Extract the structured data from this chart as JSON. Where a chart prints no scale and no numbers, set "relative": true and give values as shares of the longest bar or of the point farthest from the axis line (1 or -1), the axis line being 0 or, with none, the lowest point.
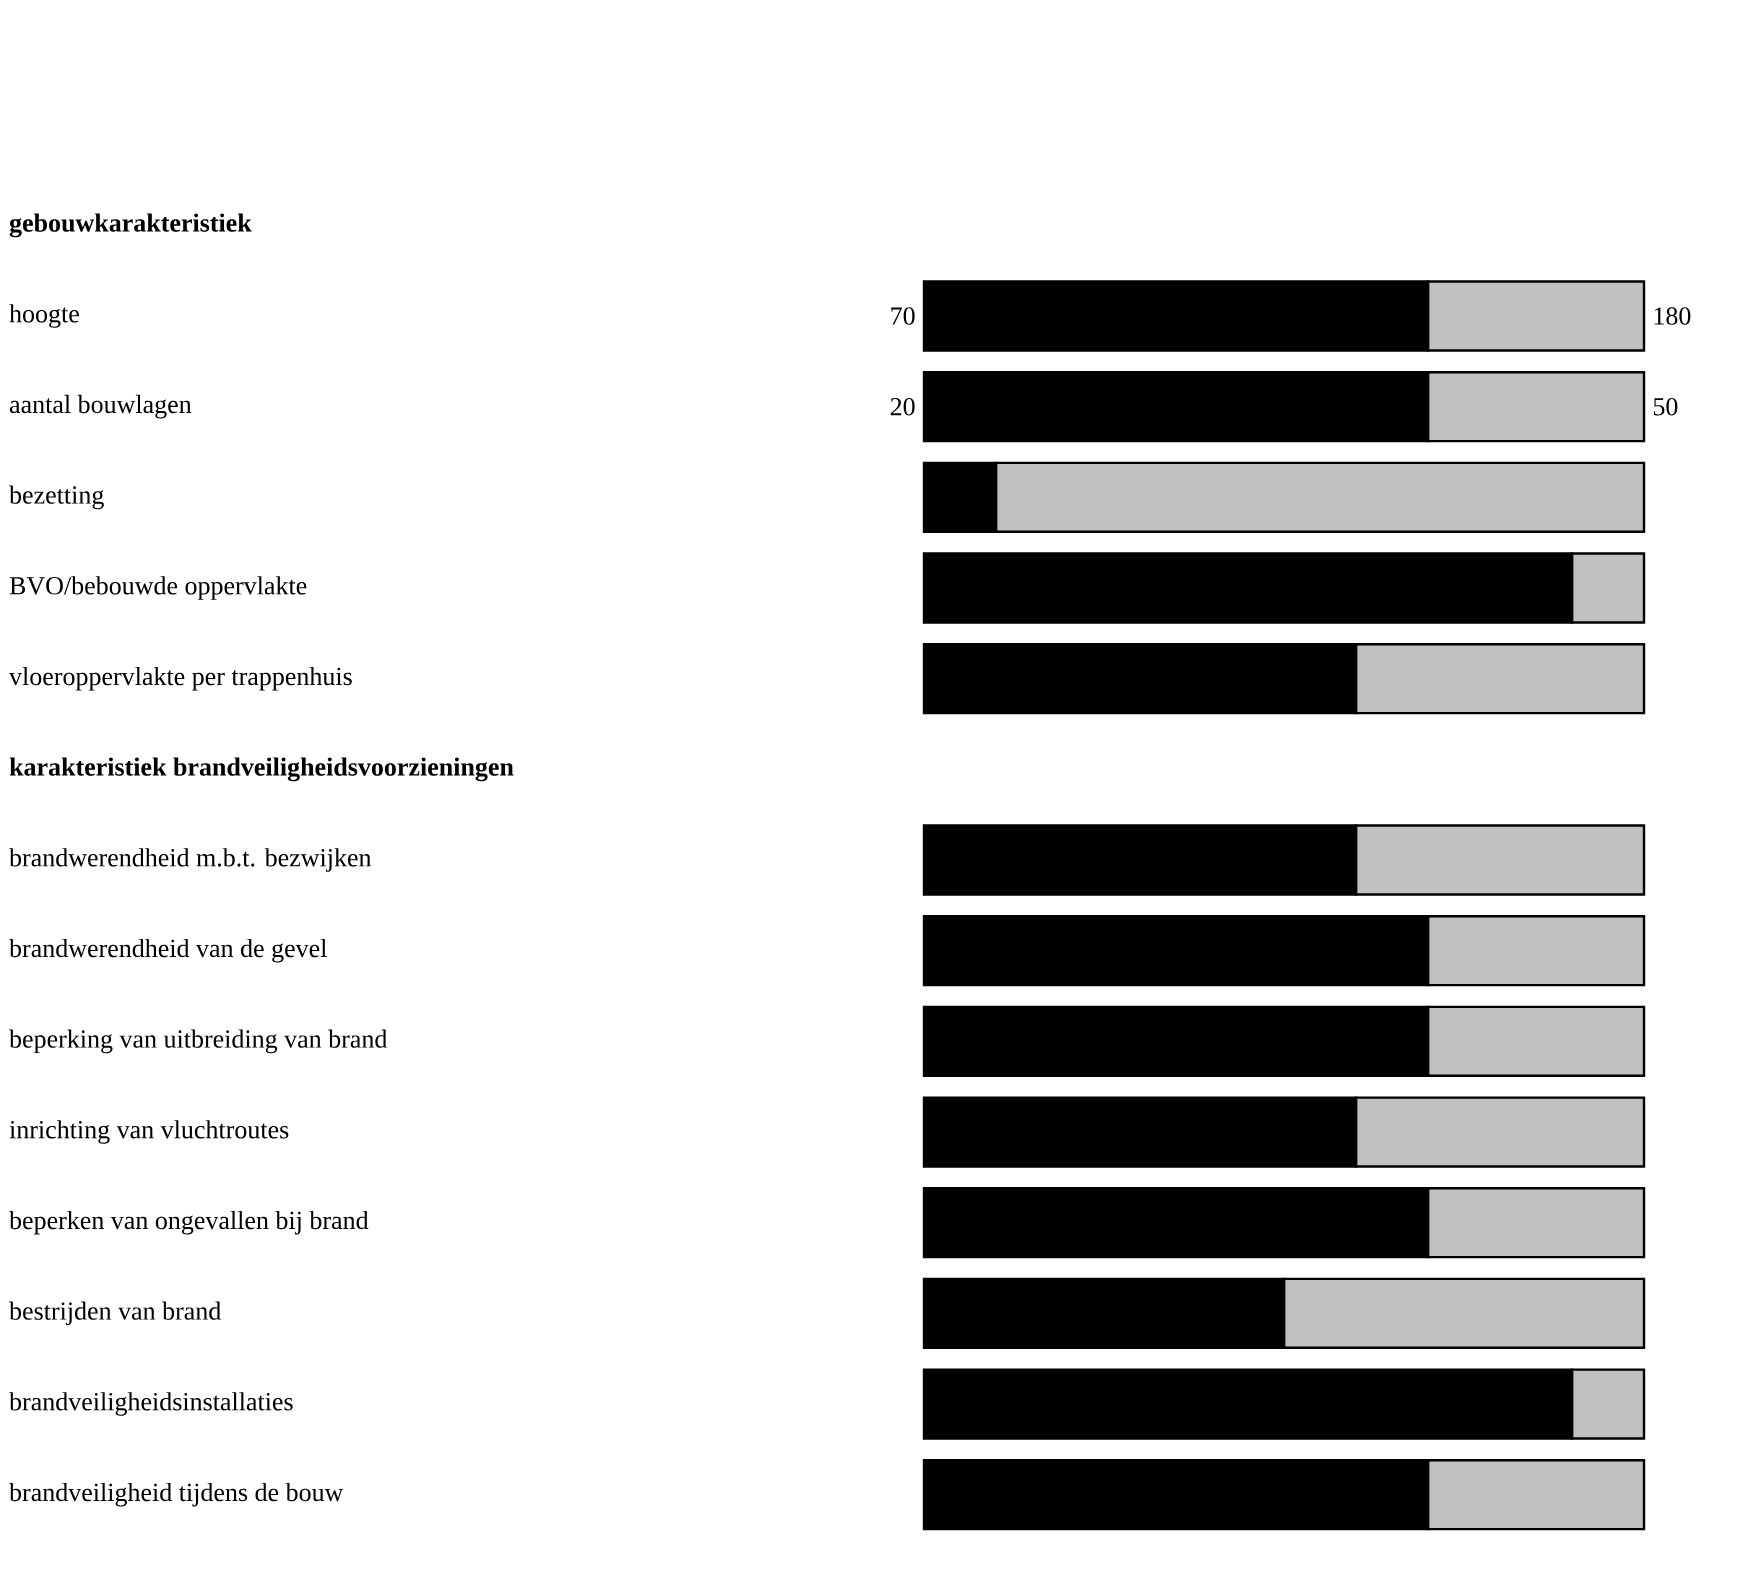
{
  "chart_data": {
    "type": "bar",
    "orientation": "horizontal",
    "stacked": true,
    "relative": true,
    "categories": [
      "gebouwkarakteristiek",
      "hoogte",
      "aantal bouwlagen",
      "bezetting",
      "BVO/bebouwde oppervlakte",
      "vloeroppervlakte per trappenhuis",
      "karakteristiek brandveiligheidsvoorzieningen",
      "brandwerendheid m.b.t. bezwijken",
      "brandwerendheid van de gevel",
      "beperking van uitbreiding van brand",
      "inrichting van vluchtroutes",
      "beperken van ongevallen bij brand",
      "bestrijden van brand",
      "brandveiligheidsinstallaties",
      "brandveiligheid tijdens de bouw"
    ],
    "series": [
      {
        "color": "#000000",
        "values": [
          null,
          0.7,
          0.7,
          0.1,
          0.9,
          0.6,
          null,
          0.6,
          0.7,
          0.7,
          0.6,
          0.7,
          0.5,
          0.9,
          0.7
        ]
      },
      {
        "color": "#c0c0c0",
        "values": [
          null,
          0.3,
          0.3,
          0.9,
          0.1,
          0.4,
          null,
          0.4,
          0.3,
          0.3,
          0.4,
          0.3,
          0.5,
          0.1,
          0.3
        ]
      }
    ],
    "annotations": [
      "70",
      "180",
      "20",
      "50"
    ]
  }
}
